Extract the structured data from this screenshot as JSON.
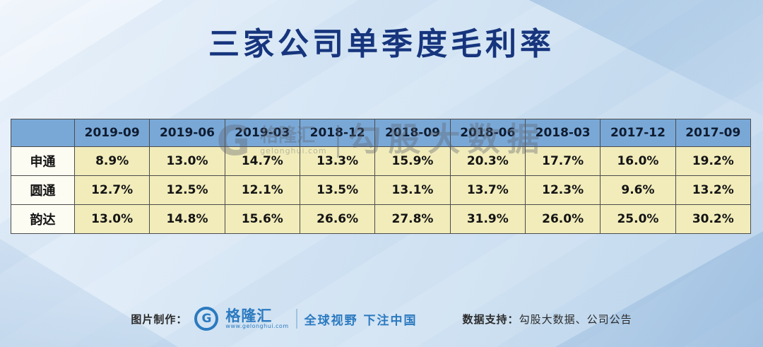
{
  "title": "三家公司单季度毛利率",
  "table": {
    "corner": "",
    "columns": [
      "2019-09",
      "2019-06",
      "2019-03",
      "2018-12",
      "2018-09",
      "2018-06",
      "2018-03",
      "2017-12",
      "2017-09"
    ],
    "rows": [
      {
        "name": "申通",
        "values": [
          "8.9%",
          "13.0%",
          "14.7%",
          "13.3%",
          "15.9%",
          "20.3%",
          "17.7%",
          "16.0%",
          "19.2%"
        ]
      },
      {
        "name": "圆通",
        "values": [
          "12.7%",
          "12.5%",
          "12.1%",
          "13.5%",
          "13.1%",
          "13.7%",
          "12.3%",
          "9.6%",
          "13.2%"
        ]
      },
      {
        "name": "韵达",
        "values": [
          "13.0%",
          "14.8%",
          "15.6%",
          "26.6%",
          "27.8%",
          "31.9%",
          "26.0%",
          "25.0%",
          "30.2%"
        ]
      }
    ]
  },
  "watermark": {
    "g_glyph": "G",
    "brand": "格隆汇",
    "brand_url": "gelonghui.com",
    "text": "勾股大数据"
  },
  "footer": {
    "made_by_label": "图片制作：",
    "logo_glyph": "G",
    "brand": "格隆汇",
    "brand_url": "www.gelonghui.com",
    "slogan": "全球视野 下注中国",
    "data_support_label": "数据支持：",
    "data_support_value": "勾股大数据、公司公告"
  },
  "colors": {
    "title_blue": "#16357d",
    "header_bg": "#79a8d7",
    "cell_bg": "#f1ecba",
    "name_cell_bg": "#fdfcf2",
    "accent_blue": "#2b7ac0",
    "border": "#4c4c4c",
    "background": "#d8e7f5"
  },
  "chart_data": {
    "type": "table",
    "title": "三家公司单季度毛利率",
    "unit": "%",
    "categories": [
      "2019-09",
      "2019-06",
      "2019-03",
      "2018-12",
      "2018-09",
      "2018-06",
      "2018-03",
      "2017-12",
      "2017-09"
    ],
    "series": [
      {
        "name": "申通",
        "values": [
          8.9,
          13.0,
          14.7,
          13.3,
          15.9,
          20.3,
          17.7,
          16.0,
          19.2
        ]
      },
      {
        "name": "圆通",
        "values": [
          12.7,
          12.5,
          12.1,
          13.5,
          13.1,
          13.7,
          12.3,
          9.6,
          13.2
        ]
      },
      {
        "name": "韵达",
        "values": [
          13.0,
          14.8,
          15.6,
          26.6,
          27.8,
          31.9,
          26.0,
          25.0,
          30.2
        ]
      }
    ]
  }
}
